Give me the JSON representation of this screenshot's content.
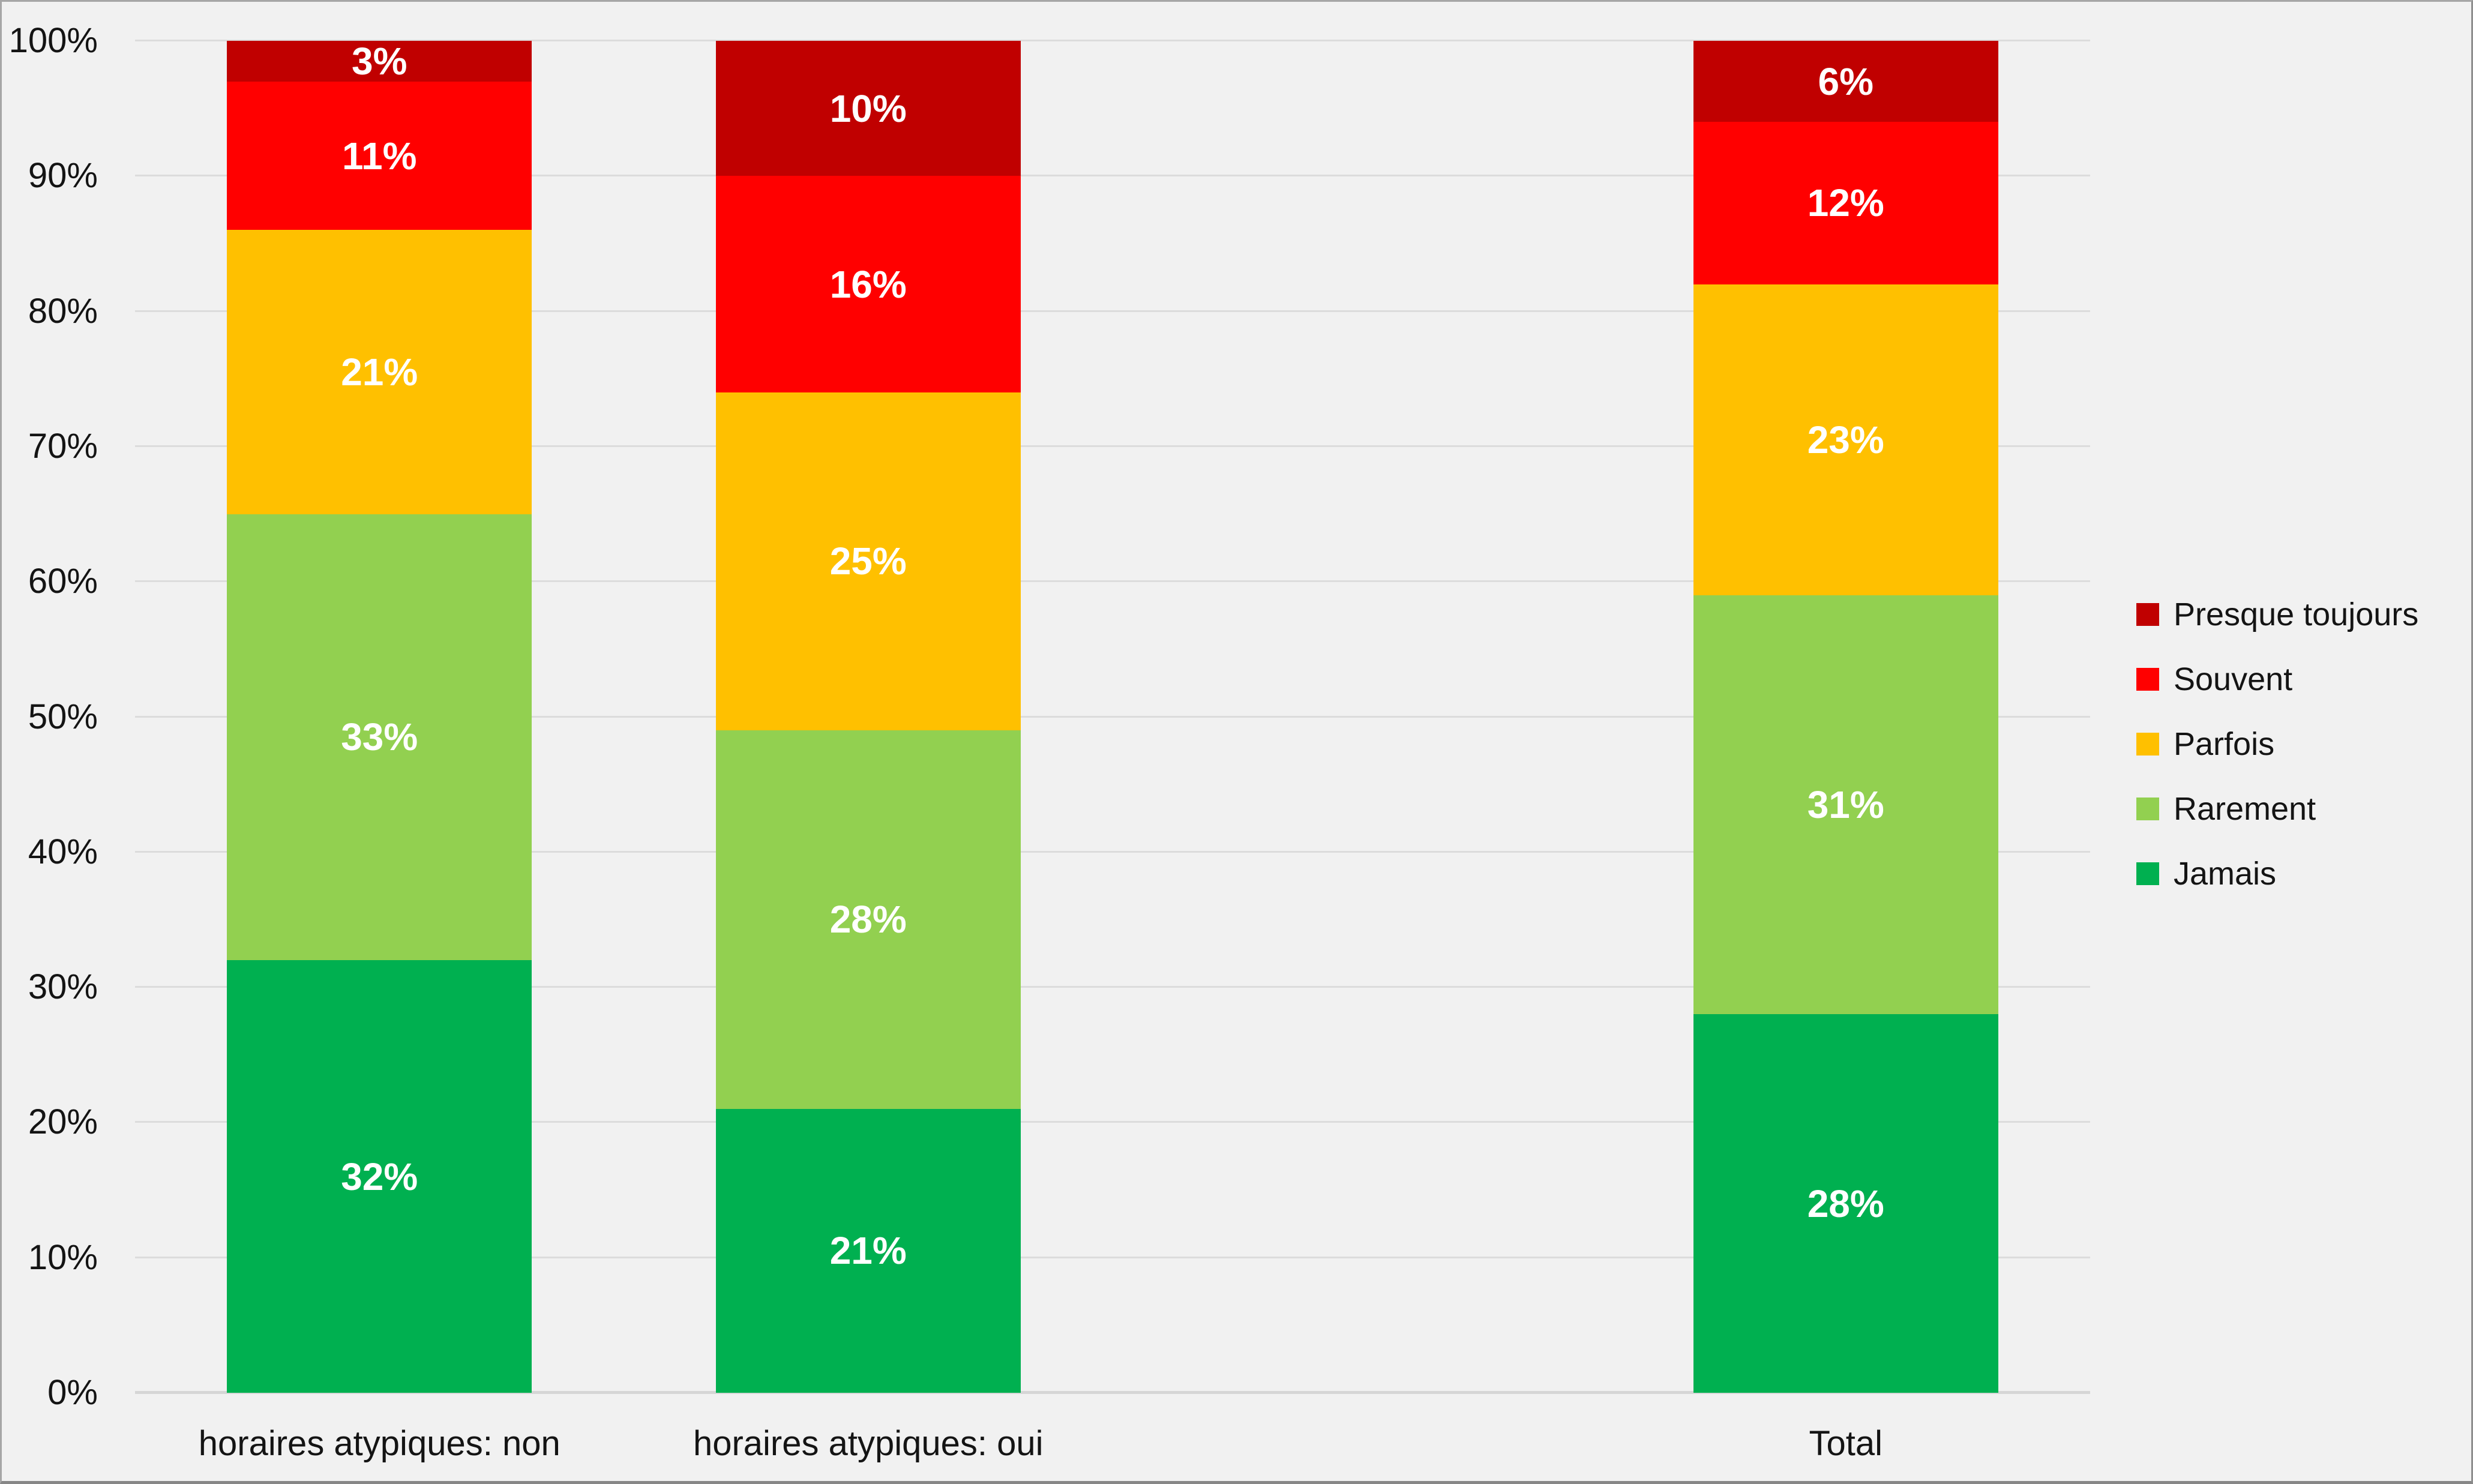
{
  "chart_data": {
    "type": "bar",
    "subtype": "stacked-100-percent",
    "title": "",
    "categories": [
      "horaires atypiques: non",
      "horaires atypiques: oui",
      "Total"
    ],
    "category_slots": [
      0,
      1,
      3
    ],
    "total_slots": 4,
    "series": [
      {
        "name": "Jamais",
        "color": "#00B050",
        "values": [
          32,
          21,
          28
        ]
      },
      {
        "name": "Rarement",
        "color": "#92D050",
        "values": [
          33,
          28,
          31
        ]
      },
      {
        "name": "Parfois",
        "color": "#FFC000",
        "values": [
          21,
          25,
          23
        ]
      },
      {
        "name": "Souvent",
        "color": "#FF0000",
        "values": [
          11,
          16,
          12
        ]
      },
      {
        "name": "Presque toujours",
        "color": "#C00000",
        "values": [
          3,
          10,
          6
        ]
      }
    ],
    "value_suffix": "%",
    "y_axis": {
      "min": 0,
      "max": 100,
      "step": 10,
      "suffix": "%"
    },
    "legend": {
      "position": "right",
      "order": [
        "Presque toujours",
        "Souvent",
        "Parfois",
        "Rarement",
        "Jamais"
      ]
    },
    "layout": {
      "grid": true,
      "background": "#F1F1F1",
      "gridline_color": "#DCDCDC",
      "baseline_color": "#D6D6D6",
      "axis_label_color": "#141414",
      "data_label_color": "#FFFFFF"
    }
  }
}
